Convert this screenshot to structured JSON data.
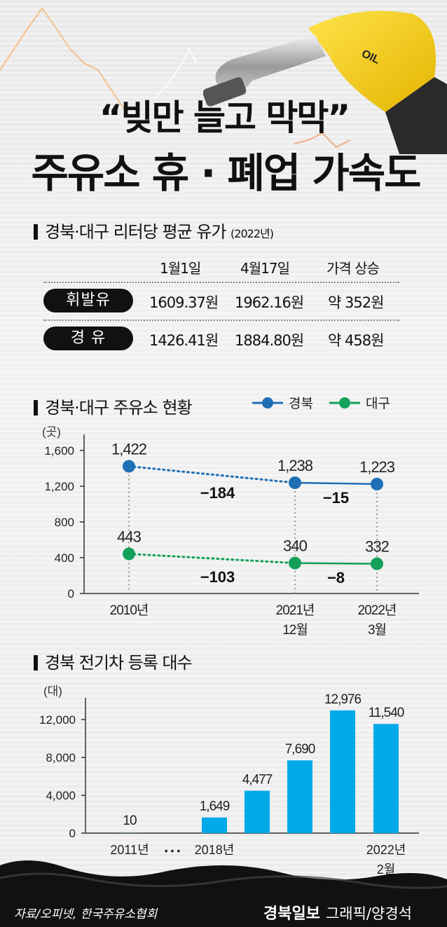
{
  "header": {
    "title_line1": "“빚만 늘고 막막”",
    "title_line2": "주유소 휴 · 폐업 가속도",
    "nozzle_label": "OIL"
  },
  "price_table": {
    "title": "경북·대구 리터당 평균 유가",
    "year_note": "(2022년)",
    "col_headers": [
      "1월1일",
      "4월17일",
      "가격 상승"
    ],
    "rows": [
      {
        "label": "휘발유",
        "cells": [
          "1609.37원",
          "1962.16원",
          "약 352원"
        ]
      },
      {
        "label": "경 유",
        "cells": [
          "1426.41원",
          "1884.80원",
          "약 458원"
        ]
      }
    ]
  },
  "colors": {
    "gyeongbuk": "#1f6fb5",
    "daegu": "#13a05a",
    "ev_bar": "#00a9e8"
  },
  "chart_data": [
    {
      "type": "line",
      "title": "경북·대구 주유소 현황",
      "unit": "(곳)",
      "x": [
        "2010년",
        "2021년 12월",
        "2022년 3월"
      ],
      "x_tick_labels": [
        [
          "2010년"
        ],
        [
          "2021년",
          "12월"
        ],
        [
          "2022년",
          "3월"
        ]
      ],
      "yticks": [
        "0",
        "400",
        "800",
        "1,200",
        "1,600"
      ],
      "ylim": [
        0,
        1700
      ],
      "series": [
        {
          "name": "경북",
          "values": [
            1422,
            1238,
            1223
          ],
          "labels": [
            "1,422",
            "1,238",
            "1,223"
          ],
          "changes": [
            "−184",
            "−15"
          ]
        },
        {
          "name": "대구",
          "values": [
            443,
            340,
            332
          ],
          "labels": [
            "443",
            "340",
            "332"
          ],
          "changes": [
            "−103",
            "−8"
          ]
        }
      ],
      "legend": "top-right"
    },
    {
      "type": "bar",
      "title": "경북 전기차 등록 대수",
      "unit": "(대)",
      "categories": [
        "2011년",
        "2018년",
        "",
        "",
        "",
        "2022년 2월"
      ],
      "x_tick_labels": [
        "2011년",
        "• • •",
        "2018년",
        "2022년",
        "2월"
      ],
      "values": [
        10,
        1649,
        4477,
        7690,
        12976,
        11540
      ],
      "labels": [
        "10",
        "1,649",
        "4,477",
        "7,690",
        "12,976",
        "11,540"
      ],
      "yticks": [
        "0",
        "4,000",
        "8,000",
        "12,000"
      ],
      "ylim": [
        0,
        14000
      ]
    }
  ],
  "footer": {
    "source": "자료/오피넷, 한국주유소협회",
    "brand": "경북일보",
    "credit": "그래픽/양경석"
  }
}
